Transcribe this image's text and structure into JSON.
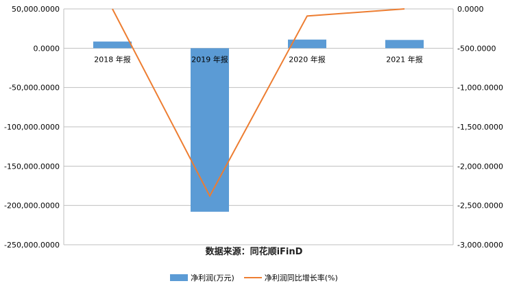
{
  "chart_data": {
    "type": "bar+line",
    "categories": [
      "2018 年报",
      "2019 年报",
      "2020 年报",
      "2021 年报"
    ],
    "series": [
      {
        "name": "净利润(万元)",
        "type": "bar",
        "axis": "left",
        "color": "#5b9bd5",
        "values": [
          8500,
          -208000,
          11000,
          10500
        ]
      },
      {
        "name": "净利润同比增长率(%)",
        "type": "line",
        "axis": "right",
        "color": "#ed7d31",
        "values": [
          0,
          -2380,
          -90,
          0
        ]
      }
    ],
    "left_axis": {
      "min": -250000,
      "max": 50000,
      "step": 50000,
      "tick_labels": [
        "50,000.0000",
        "0.0000",
        "-50,000.0000",
        "-100,000.0000",
        "-150,000.0000",
        "-200,000.0000",
        "-250,000.0000"
      ]
    },
    "right_axis": {
      "min": -3000,
      "max": 0,
      "step": 500,
      "tick_labels": [
        "0.0000",
        "-500.0000",
        "-1,000.0000",
        "-1,500.0000",
        "-2,000.0000",
        "-2,500.0000",
        "-3,000.0000"
      ]
    },
    "grid": true,
    "legend_position": "bottom"
  },
  "source_text": "数据来源：同花顺iFinD"
}
